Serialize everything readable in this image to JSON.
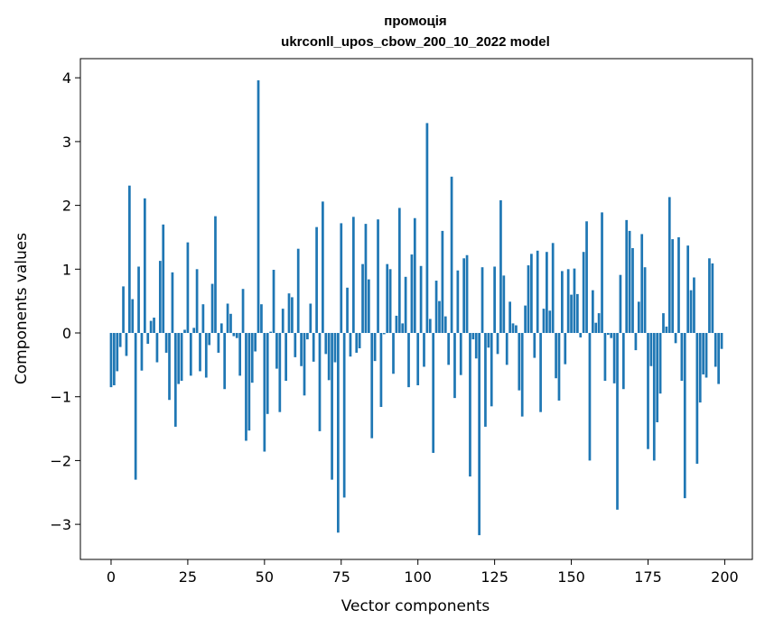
{
  "chart_data": {
    "type": "bar",
    "title_line1": "промоція",
    "title_line2": "ukrconll_upos_cbow_200_10_2022 model",
    "xlabel": "Vector components",
    "ylabel": "Components values",
    "xlim": [
      -10,
      209
    ],
    "ylim": [
      -3.55,
      4.3
    ],
    "xticks": [
      0,
      25,
      50,
      75,
      100,
      125,
      150,
      175,
      200
    ],
    "yticks": [
      -3,
      -2,
      -1,
      0,
      1,
      2,
      3,
      4
    ],
    "xtick_labels": [
      "0",
      "25",
      "50",
      "75",
      "100",
      "125",
      "150",
      "175",
      "200"
    ],
    "ytick_labels": [
      "−3",
      "−2",
      "−1",
      "0",
      "1",
      "2",
      "3",
      "4"
    ],
    "bar_color": "#1f77b4",
    "bar_width": 0.8,
    "x": [
      0,
      1,
      2,
      3,
      4,
      5,
      6,
      7,
      8,
      9,
      10,
      11,
      12,
      13,
      14,
      15,
      16,
      17,
      18,
      19,
      20,
      21,
      22,
      23,
      24,
      25,
      26,
      27,
      28,
      29,
      30,
      31,
      32,
      33,
      34,
      35,
      36,
      37,
      38,
      39,
      40,
      41,
      42,
      43,
      44,
      45,
      46,
      47,
      48,
      49,
      50,
      51,
      52,
      53,
      54,
      55,
      56,
      57,
      58,
      59,
      60,
      61,
      62,
      63,
      64,
      65,
      66,
      67,
      68,
      69,
      70,
      71,
      72,
      73,
      74,
      75,
      76,
      77,
      78,
      79,
      80,
      81,
      82,
      83,
      84,
      85,
      86,
      87,
      88,
      89,
      90,
      91,
      92,
      93,
      94,
      95,
      96,
      97,
      98,
      99,
      100,
      101,
      102,
      103,
      104,
      105,
      106,
      107,
      108,
      109,
      110,
      111,
      112,
      113,
      114,
      115,
      116,
      117,
      118,
      119,
      120,
      121,
      122,
      123,
      124,
      125,
      126,
      127,
      128,
      129,
      130,
      131,
      132,
      133,
      134,
      135,
      136,
      137,
      138,
      139,
      140,
      141,
      142,
      143,
      144,
      145,
      146,
      147,
      148,
      149,
      150,
      151,
      152,
      153,
      154,
      155,
      156,
      157,
      158,
      159,
      160,
      161,
      162,
      163,
      164,
      165,
      166,
      167,
      168,
      169,
      170,
      171,
      172,
      173,
      174,
      175,
      176,
      177,
      178,
      179,
      180,
      181,
      182,
      183,
      184,
      185,
      186,
      187,
      188,
      189,
      190,
      191,
      192,
      193,
      194,
      195,
      196,
      197,
      198,
      199
    ],
    "values": [
      -0.85,
      -0.82,
      -0.6,
      -0.22,
      0.73,
      -0.36,
      2.31,
      0.53,
      -2.3,
      1.04,
      -0.59,
      2.11,
      -0.17,
      0.19,
      0.24,
      -0.46,
      1.13,
      1.7,
      -0.31,
      -1.05,
      0.95,
      -1.47,
      -0.8,
      -0.75,
      0.05,
      1.42,
      -0.67,
      0.08,
      1.0,
      -0.6,
      0.45,
      -0.7,
      -0.19,
      0.77,
      1.83,
      -0.31,
      0.15,
      -0.88,
      0.46,
      0.3,
      -0.05,
      -0.08,
      -0.67,
      0.69,
      -1.69,
      -1.53,
      -0.78,
      -0.29,
      3.96,
      0.45,
      -1.86,
      -1.27,
      0.02,
      0.99,
      -0.56,
      -1.24,
      0.38,
      -0.75,
      0.62,
      0.56,
      -0.38,
      1.32,
      -0.52,
      -0.98,
      -0.1,
      0.46,
      -0.45,
      1.66,
      -1.54,
      2.06,
      -0.33,
      -0.74,
      -2.3,
      -0.46,
      -3.13,
      1.72,
      -2.58,
      0.71,
      -0.37,
      1.82,
      -0.31,
      -0.24,
      1.08,
      1.71,
      0.84,
      -1.65,
      -0.44,
      1.78,
      -1.16,
      -0.02,
      1.08,
      1.0,
      -0.64,
      0.27,
      1.96,
      0.15,
      0.88,
      -0.85,
      1.23,
      1.8,
      -0.82,
      1.05,
      -0.53,
      3.29,
      0.22,
      -1.88,
      0.82,
      0.5,
      1.6,
      0.26,
      -0.5,
      2.45,
      -1.02,
      0.98,
      -0.66,
      1.17,
      1.22,
      -2.25,
      -0.1,
      -0.4,
      -3.17,
      1.03,
      -1.47,
      -0.23,
      -1.15,
      1.04,
      -0.33,
      2.08,
      0.9,
      -0.5,
      0.49,
      0.15,
      0.12,
      -0.9,
      -1.31,
      0.43,
      1.06,
      1.24,
      -0.39,
      1.29,
      -1.24,
      0.38,
      1.27,
      0.35,
      1.41,
      -0.71,
      -1.06,
      0.97,
      -0.49,
      1.0,
      0.6,
      1.01,
      0.61,
      -0.07,
      1.27,
      1.75,
      -2.0,
      0.67,
      0.16,
      0.31,
      1.89,
      -0.75,
      -0.03,
      -0.08,
      -0.79,
      -2.77,
      0.91,
      -0.88,
      1.77,
      1.6,
      1.33,
      -0.27,
      0.49,
      1.55,
      1.03,
      -1.82,
      -0.52,
      -2.0,
      -1.4,
      -0.95,
      0.31,
      0.1,
      2.13,
      1.47,
      -0.16,
      1.5,
      -0.75,
      -2.59,
      1.37,
      0.67,
      0.87,
      -2.05,
      -1.09,
      -0.65,
      -0.7,
      1.17,
      1.09,
      -0.53,
      -0.8,
      -0.25
    ]
  }
}
